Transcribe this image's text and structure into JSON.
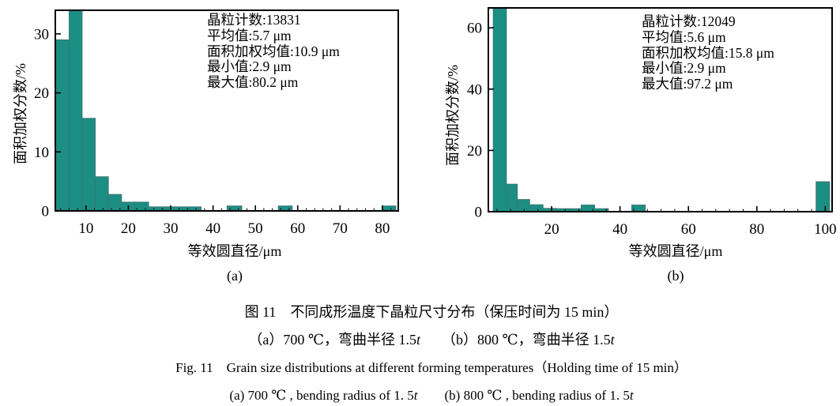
{
  "figure": {
    "bg": "#ffffff",
    "text_color": "#000000"
  },
  "chart_data": [
    {
      "id": "a",
      "type": "bar",
      "subtype": "histogram",
      "panel": "(a)",
      "xlabel": "等效圆直径/μm",
      "ylabel": "面积加权分数/%",
      "bar_color": "#1c8e84",
      "bar_edge_color": "#46736e",
      "axis_color": "#000000",
      "grid": false,
      "legend": "none",
      "xlim": [
        2.75,
        83.75
      ],
      "ylim": [
        0,
        34
      ],
      "xticks": [
        10,
        20,
        30,
        40,
        50,
        60,
        70,
        80
      ],
      "yticks": [
        0,
        10,
        20,
        30
      ],
      "x_minor_step": 2,
      "annotation": [
        "晶粒计数:13831",
        "平均值:5.7 μm",
        "面积加权均值:10.9 μm",
        "最小值:2.9 μm",
        "最大值:80.2 μm"
      ],
      "bars": [
        {
          "x0": 2.9,
          "x1": 6.0,
          "h": 29.0
        },
        {
          "x0": 6.0,
          "x1": 9.1,
          "h": 34.0
        },
        {
          "x0": 9.1,
          "x1": 12.2,
          "h": 15.7
        },
        {
          "x0": 12.2,
          "x1": 15.3,
          "h": 5.8
        },
        {
          "x0": 15.3,
          "x1": 18.4,
          "h": 2.8
        },
        {
          "x0": 18.4,
          "x1": 21.5,
          "h": 1.5
        },
        {
          "x0": 21.5,
          "x1": 24.8,
          "h": 1.5
        },
        {
          "x0": 24.8,
          "x1": 27.9,
          "h": 0.7
        },
        {
          "x0": 27.9,
          "x1": 31.0,
          "h": 0.7
        },
        {
          "x0": 31.0,
          "x1": 34.1,
          "h": 0.7
        },
        {
          "x0": 34.1,
          "x1": 37.2,
          "h": 0.7
        },
        {
          "x0": 43.3,
          "x1": 46.8,
          "h": 0.85
        },
        {
          "x0": 55.4,
          "x1": 58.7,
          "h": 0.85
        },
        {
          "x0": 79.9,
          "x1": 83.2,
          "h": 0.85
        }
      ]
    },
    {
      "id": "b",
      "type": "bar",
      "subtype": "histogram",
      "panel": "(b)",
      "xlabel": "等效圆直径/μm",
      "ylabel": "面积加权分数/%",
      "bar_color": "#1c8e84",
      "bar_edge_color": "#46736e",
      "axis_color": "#000000",
      "grid": false,
      "legend": "none",
      "xlim": [
        1.5,
        102
      ],
      "ylim": [
        0,
        66.5
      ],
      "xticks": [
        20,
        40,
        60,
        80,
        100
      ],
      "yticks": [
        0,
        20,
        40,
        60
      ],
      "x_minor_step": 4,
      "annotation": [
        "晶粒计数:12049",
        "平均值:5.6 μm",
        "面积加权均值:15.8 μm",
        "最小值:2.9 μm",
        "最大值:97.2 μm"
      ],
      "bars": [
        {
          "x0": 2.9,
          "x1": 6.8,
          "h": 66.5
        },
        {
          "x0": 6.8,
          "x1": 10.0,
          "h": 9.0
        },
        {
          "x0": 10.0,
          "x1": 13.6,
          "h": 4.0
        },
        {
          "x0": 13.6,
          "x1": 17.5,
          "h": 2.3
        },
        {
          "x0": 17.5,
          "x1": 21.4,
          "h": 1.1
        },
        {
          "x0": 21.4,
          "x1": 25.0,
          "h": 1.0
        },
        {
          "x0": 25.0,
          "x1": 28.6,
          "h": 1.0
        },
        {
          "x0": 28.6,
          "x1": 32.6,
          "h": 2.2
        },
        {
          "x0": 32.6,
          "x1": 36.6,
          "h": 1.0
        },
        {
          "x0": 43.4,
          "x1": 47.4,
          "h": 2.2
        },
        {
          "x0": 97.3,
          "x1": 101.3,
          "h": 9.8
        }
      ]
    }
  ],
  "caption": {
    "zh_title": "图 11　不同成形温度下晶粒尺寸分布（保压时间为 15 min）",
    "zh_sub_a": "（a）700 ℃，弯曲半径 1.5",
    "zh_sub_a_var": "t",
    "zh_sub_b": "　　（b）800 ℃，弯曲半径 1.5",
    "zh_sub_b_var": "t",
    "en_title": "Fig. 11　Grain size distributions at different forming temperatures（Holding time of 15 min）",
    "en_sub_a": "(a) 700 ℃ , bending radius of 1. 5",
    "en_sub_a_var": "t",
    "en_sub_b": "　　(b) 800 ℃ , bending radius of 1. 5",
    "en_sub_b_var": "t"
  }
}
